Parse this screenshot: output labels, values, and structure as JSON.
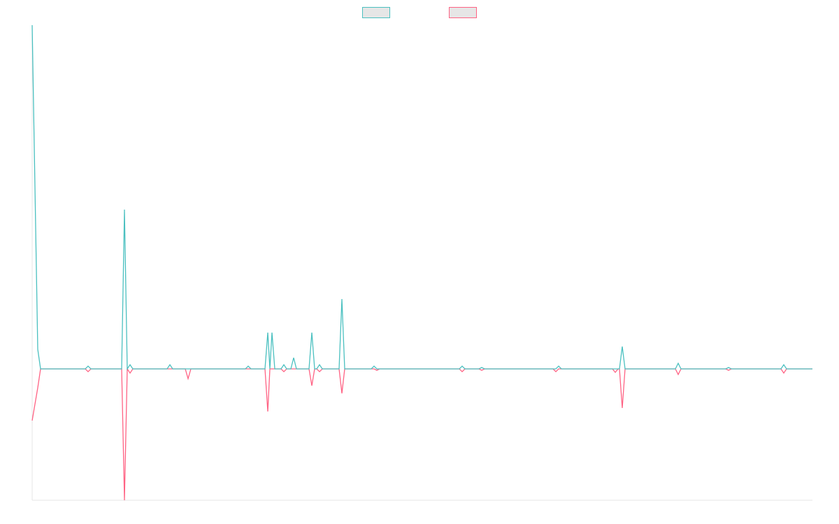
{
  "chart_data": {
    "type": "line",
    "legend": "top",
    "x": [
      0,
      8,
      12,
      76,
      80,
      84,
      128,
      132,
      136,
      140,
      144,
      193,
      197,
      201,
      219,
      223,
      227,
      305,
      309,
      313,
      333,
      337,
      340,
      343,
      347,
      356,
      360,
      364,
      370,
      374,
      378,
      396,
      400,
      404,
      407,
      411,
      415,
      439,
      443,
      447,
      485,
      489,
      493,
      497,
      611,
      615,
      619,
      639,
      643,
      647,
      745,
      749,
      753,
      757,
      830,
      834,
      838,
      840,
      844,
      848,
      920,
      924,
      928,
      992,
      996,
      1000,
      1071,
      1075,
      1079,
      1116
    ],
    "xlim": [
      0,
      1116
    ],
    "ylim": [
      -188,
      492
    ],
    "series": [
      {
        "color": "#ff6384",
        "values": [
          -74,
          -27,
          0,
          0,
          -4,
          0,
          0,
          -188,
          0,
          -6,
          0,
          0,
          0,
          0,
          0,
          -14,
          0,
          0,
          0,
          0,
          0,
          -61,
          0,
          0,
          0,
          0,
          -4,
          0,
          0,
          0,
          0,
          0,
          -24,
          0,
          0,
          -4,
          0,
          0,
          -35,
          0,
          0,
          0,
          -2,
          0,
          0,
          -4,
          0,
          0,
          -2,
          0,
          0,
          -4,
          0,
          0,
          0,
          -5,
          0,
          0,
          -56,
          0,
          0,
          -8,
          0,
          0,
          -2,
          0,
          0,
          -6,
          0,
          0
        ]
      },
      {
        "color": "#4bc0c0",
        "values": [
          492,
          28,
          0,
          0,
          4,
          0,
          0,
          228,
          0,
          6,
          0,
          0,
          6,
          0,
          0,
          0,
          0,
          0,
          4,
          0,
          0,
          52,
          0,
          52,
          0,
          0,
          6,
          0,
          0,
          16,
          0,
          0,
          52,
          0,
          0,
          6,
          0,
          0,
          100,
          0,
          0,
          4,
          0,
          0,
          0,
          4,
          0,
          0,
          2,
          0,
          0,
          0,
          4,
          0,
          0,
          0,
          0,
          0,
          32,
          0,
          0,
          8,
          0,
          0,
          2,
          0,
          0,
          6,
          0,
          0
        ]
      }
    ]
  }
}
